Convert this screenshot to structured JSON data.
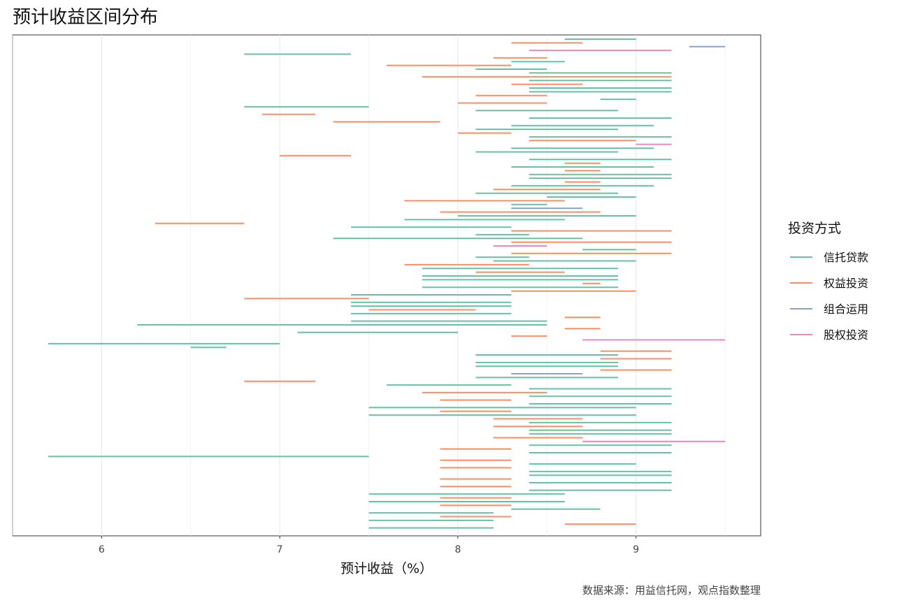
{
  "chart_data": {
    "type": "range",
    "title": "预计收益区间分布",
    "xlabel": "预计收益（%）",
    "ylabel": "",
    "caption": "数据来源：用益信托网，观点指数整理",
    "xlim": [
      5.5,
      9.7
    ],
    "x_ticks": [
      6,
      7,
      8,
      9
    ],
    "x_tick_labels": [
      "6",
      "7",
      "8",
      "9"
    ],
    "grid": "vertical major and minor",
    "legend": {
      "title": "投资方式",
      "position": "right",
      "entries": [
        {
          "name": "信托贷款",
          "color": "#66c2a5"
        },
        {
          "name": "权益投资",
          "color": "#fc8d62"
        },
        {
          "name": "组合运用",
          "color": "#8da0cb"
        },
        {
          "name": "股权投资",
          "color": "#e78ac3"
        }
      ]
    },
    "series": [
      {
        "name": "信托贷款",
        "color": "#66c2a5",
        "ranges": [
          [
            8.6,
            9.0
          ],
          [
            6.8,
            7.4
          ],
          [
            8.3,
            8.6
          ],
          [
            8.1,
            8.5
          ],
          [
            8.4,
            9.2
          ],
          [
            8.4,
            9.2
          ],
          [
            8.4,
            9.2
          ],
          [
            8.4,
            9.2
          ],
          [
            8.8,
            9.0
          ],
          [
            6.8,
            7.5
          ],
          [
            8.1,
            8.9
          ],
          [
            8.4,
            9.2
          ],
          [
            8.3,
            9.1
          ],
          [
            8.1,
            8.9
          ],
          [
            8.4,
            9.2
          ],
          [
            8.3,
            9.1
          ],
          [
            8.1,
            8.9
          ],
          [
            8.4,
            9.2
          ],
          [
            8.3,
            9.1
          ],
          [
            8.4,
            9.2
          ],
          [
            8.4,
            9.2
          ],
          [
            8.3,
            9.1
          ],
          [
            8.1,
            8.9
          ],
          [
            8.5,
            9.0
          ],
          [
            8.3,
            8.5
          ],
          [
            8.0,
            9.0
          ],
          [
            7.7,
            8.6
          ],
          [
            7.4,
            8.3
          ],
          [
            8.1,
            8.4
          ],
          [
            7.3,
            8.7
          ],
          [
            8.7,
            9.0
          ],
          [
            8.1,
            8.4
          ],
          [
            8.2,
            9.0
          ],
          [
            7.8,
            8.9
          ],
          [
            7.8,
            8.9
          ],
          [
            7.8,
            8.9
          ],
          [
            7.8,
            8.9
          ],
          [
            7.4,
            8.3
          ],
          [
            7.4,
            8.3
          ],
          [
            7.4,
            8.3
          ],
          [
            7.4,
            8.3
          ],
          [
            7.4,
            8.5
          ],
          [
            6.2,
            8.5
          ],
          [
            7.1,
            8.0
          ],
          [
            5.7,
            7.0
          ],
          [
            6.5,
            6.7
          ],
          [
            8.1,
            8.9
          ],
          [
            8.1,
            8.9
          ],
          [
            8.1,
            8.9
          ],
          [
            8.1,
            8.9
          ],
          [
            7.6,
            8.3
          ],
          [
            8.4,
            9.2
          ],
          [
            8.4,
            9.2
          ],
          [
            8.4,
            9.2
          ],
          [
            7.5,
            9.0
          ],
          [
            7.5,
            9.0
          ],
          [
            8.4,
            9.2
          ],
          [
            8.4,
            9.2
          ],
          [
            8.4,
            9.2
          ],
          [
            8.4,
            9.2
          ],
          [
            8.4,
            9.2
          ],
          [
            5.7,
            7.5
          ],
          [
            8.4,
            9.0
          ],
          [
            8.4,
            9.2
          ],
          [
            8.4,
            9.2
          ],
          [
            8.4,
            9.2
          ],
          [
            8.4,
            9.2
          ],
          [
            7.5,
            8.6
          ],
          [
            7.5,
            8.6
          ],
          [
            8.3,
            8.8
          ],
          [
            7.5,
            8.2
          ],
          [
            7.5,
            8.2
          ],
          [
            7.5,
            8.2
          ]
        ]
      },
      {
        "name": "权益投资",
        "color": "#fc8d62",
        "ranges": [
          [
            8.3,
            8.7
          ],
          [
            8.2,
            8.5
          ],
          [
            7.6,
            8.3
          ],
          [
            7.8,
            9.2
          ],
          [
            8.3,
            8.7
          ],
          [
            8.1,
            8.5
          ],
          [
            8.0,
            8.5
          ],
          [
            6.9,
            7.2
          ],
          [
            7.3,
            7.9
          ],
          [
            8.0,
            8.3
          ],
          [
            8.4,
            9.0
          ],
          [
            7.0,
            7.4
          ],
          [
            8.6,
            8.8
          ],
          [
            8.6,
            8.8
          ],
          [
            8.6,
            8.8
          ],
          [
            8.2,
            8.8
          ],
          [
            7.7,
            8.6
          ],
          [
            7.9,
            8.8
          ],
          [
            6.3,
            6.8
          ],
          [
            8.3,
            9.2
          ],
          [
            8.3,
            9.2
          ],
          [
            8.3,
            9.2
          ],
          [
            7.7,
            8.4
          ],
          [
            8.1,
            8.6
          ],
          [
            8.7,
            8.8
          ],
          [
            8.3,
            9.0
          ],
          [
            6.8,
            7.5
          ],
          [
            7.5,
            8.1
          ],
          [
            8.6,
            8.8
          ],
          [
            8.6,
            8.8
          ],
          [
            8.3,
            8.5
          ],
          [
            8.8,
            9.2
          ],
          [
            8.8,
            9.2
          ],
          [
            8.8,
            9.2
          ],
          [
            6.8,
            7.2
          ],
          [
            7.8,
            8.5
          ],
          [
            7.9,
            8.3
          ],
          [
            7.9,
            8.3
          ],
          [
            8.2,
            8.7
          ],
          [
            8.2,
            8.7
          ],
          [
            8.2,
            8.7
          ],
          [
            7.9,
            8.3
          ],
          [
            7.9,
            8.3
          ],
          [
            7.9,
            8.3
          ],
          [
            7.9,
            8.3
          ],
          [
            7.9,
            8.3
          ],
          [
            7.9,
            8.3
          ],
          [
            7.9,
            8.3
          ],
          [
            7.9,
            8.3
          ],
          [
            8.6,
            9.0
          ]
        ]
      },
      {
        "name": "组合运用",
        "color": "#8da0cb",
        "ranges": [
          [
            9.3,
            9.5
          ],
          [
            8.3,
            8.7
          ],
          [
            8.3,
            8.7
          ]
        ]
      },
      {
        "name": "股权投资",
        "color": "#e78ac3",
        "ranges": [
          [
            8.4,
            9.2
          ],
          [
            9.0,
            9.2
          ],
          [
            8.2,
            8.5
          ],
          [
            8.7,
            9.5
          ],
          [
            8.7,
            9.5
          ]
        ]
      }
    ]
  }
}
